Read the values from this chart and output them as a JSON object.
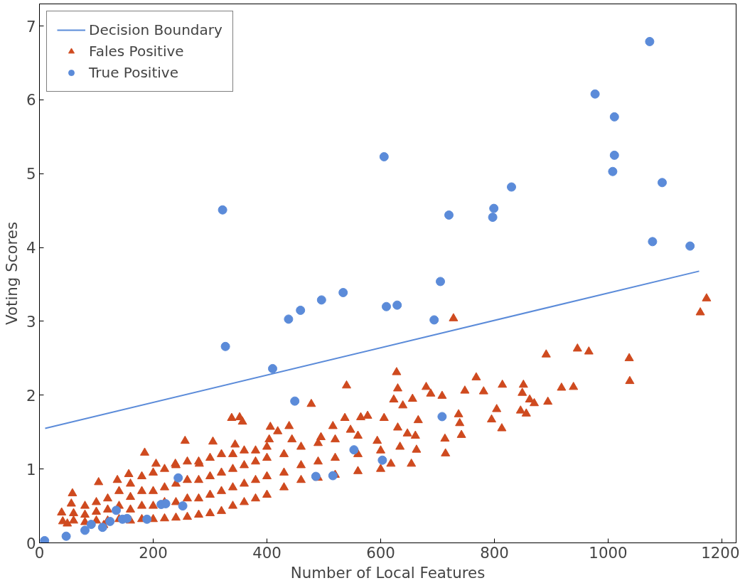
{
  "chart_data": {
    "type": "scatter",
    "xlabel": "Number of Local Features",
    "ylabel": "Voting Scores",
    "xlim": [
      0,
      1225
    ],
    "ylim": [
      0,
      7.3
    ],
    "xticks": [
      0,
      200,
      400,
      600,
      800,
      1000,
      1200
    ],
    "yticks": [
      0,
      1,
      2,
      3,
      4,
      5,
      6,
      7
    ],
    "grid": false,
    "legend": "top left",
    "series": [
      {
        "name": "Decision Boundary",
        "type": "line",
        "color": "#5b8bd9",
        "line_style": "solid",
        "marker": "none",
        "x": [
          10,
          1160
        ],
        "values": [
          1.55,
          3.68
        ]
      },
      {
        "name": "Fales Positive",
        "color": "#cf4a1f",
        "marker": "triangle",
        "x": [
          1173,
          1162,
          728,
          891,
          946,
          966,
          1037,
          1038,
          628,
          768,
          814,
          851,
          918,
          939,
          630,
          680,
          748,
          781,
          849,
          623,
          656,
          688,
          708,
          639,
          862,
          870,
          894,
          804,
          846,
          856,
          795,
          813,
          737,
          739,
          742,
          666,
          606,
          630,
          647,
          661,
          713,
          714,
          663,
          654,
          618,
          634,
          540,
          478,
          338,
          352,
          357,
          406,
          439,
          419,
          516,
          537,
          565,
          577,
          256,
          305,
          185,
          344,
          404,
          444,
          495,
          594,
          547,
          205,
          239,
          281,
          58,
          104,
          157,
          137,
          56,
          39,
          41,
          49,
          113,
          60,
          60,
          80,
          80,
          80,
          100,
          100,
          100,
          120,
          120,
          120,
          140,
          140,
          140,
          160,
          160,
          160,
          160,
          180,
          180,
          180,
          180,
          200,
          200,
          200,
          200,
          220,
          220,
          220,
          220,
          240,
          240,
          240,
          240,
          260,
          260,
          260,
          260,
          280,
          280,
          280,
          280,
          300,
          300,
          300,
          300,
          320,
          320,
          320,
          320,
          340,
          340,
          340,
          340,
          360,
          360,
          360,
          360,
          380,
          380,
          380,
          380,
          400,
          400,
          400,
          400,
          430,
          430,
          430,
          460,
          460,
          460,
          490,
          490,
          490,
          520,
          520,
          520,
          560,
          560,
          560,
          600,
          600
        ],
        "values": [
          3.31,
          3.12,
          3.04,
          2.55,
          2.63,
          2.59,
          2.5,
          2.19,
          2.31,
          2.24,
          2.14,
          2.14,
          2.1,
          2.11,
          2.09,
          2.11,
          2.06,
          2.05,
          2.03,
          1.94,
          1.95,
          2.02,
          1.99,
          1.86,
          1.94,
          1.89,
          1.91,
          1.81,
          1.79,
          1.75,
          1.67,
          1.55,
          1.74,
          1.62,
          1.46,
          1.66,
          1.69,
          1.56,
          1.48,
          1.45,
          1.41,
          1.21,
          1.26,
          1.07,
          1.07,
          1.3,
          2.13,
          1.88,
          1.69,
          1.7,
          1.64,
          1.57,
          1.58,
          1.51,
          1.58,
          1.69,
          1.7,
          1.72,
          1.38,
          1.37,
          1.22,
          1.33,
          1.4,
          1.4,
          1.43,
          1.38,
          1.53,
          1.07,
          1.07,
          1.07,
          0.67,
          0.82,
          0.93,
          0.85,
          0.53,
          0.41,
          0.29,
          0.26,
          0.24,
          0.3,
          0.4,
          0.28,
          0.38,
          0.5,
          0.3,
          0.42,
          0.55,
          0.3,
          0.45,
          0.6,
          0.32,
          0.5,
          0.7,
          0.3,
          0.45,
          0.62,
          0.8,
          0.32,
          0.5,
          0.7,
          0.9,
          0.32,
          0.5,
          0.7,
          0.95,
          0.33,
          0.55,
          0.75,
          1.0,
          0.34,
          0.55,
          0.8,
          1.05,
          0.35,
          0.6,
          0.85,
          1.1,
          0.38,
          0.6,
          0.85,
          1.1,
          0.4,
          0.65,
          0.9,
          1.15,
          0.43,
          0.7,
          0.95,
          1.2,
          0.5,
          0.75,
          1.0,
          1.2,
          0.55,
          0.8,
          1.05,
          1.25,
          0.6,
          0.85,
          1.1,
          1.25,
          0.65,
          0.9,
          1.15,
          1.3,
          0.75,
          0.95,
          1.2,
          0.85,
          1.05,
          1.3,
          0.88,
          1.1,
          1.35,
          0.92,
          1.15,
          1.4,
          0.97,
          1.2,
          1.45,
          1.0,
          1.25
        ]
      },
      {
        "name": "True Positive",
        "color": "#5b8bd9",
        "marker": "circle",
        "x": [
          9,
          47,
          80,
          91,
          111,
          124,
          135,
          146,
          154,
          189,
          214,
          222,
          244,
          252,
          322,
          327,
          410,
          438,
          449,
          459,
          486,
          496,
          516,
          534,
          553,
          603,
          606,
          610,
          629,
          694,
          705,
          708,
          720,
          797,
          799,
          830,
          977,
          1008,
          1011,
          1011,
          1073,
          1078,
          1095,
          1144
        ],
        "values": [
          0.03,
          0.09,
          0.17,
          0.25,
          0.21,
          0.29,
          0.44,
          0.32,
          0.33,
          0.32,
          0.52,
          0.53,
          0.88,
          0.5,
          4.51,
          2.66,
          2.36,
          3.03,
          1.92,
          3.15,
          0.9,
          3.29,
          0.91,
          3.39,
          1.26,
          1.12,
          5.23,
          3.2,
          3.22,
          3.02,
          3.54,
          1.71,
          4.44,
          4.41,
          4.53,
          4.82,
          6.08,
          5.03,
          5.77,
          5.25,
          6.79,
          4.08,
          4.88,
          4.02
        ]
      }
    ]
  }
}
